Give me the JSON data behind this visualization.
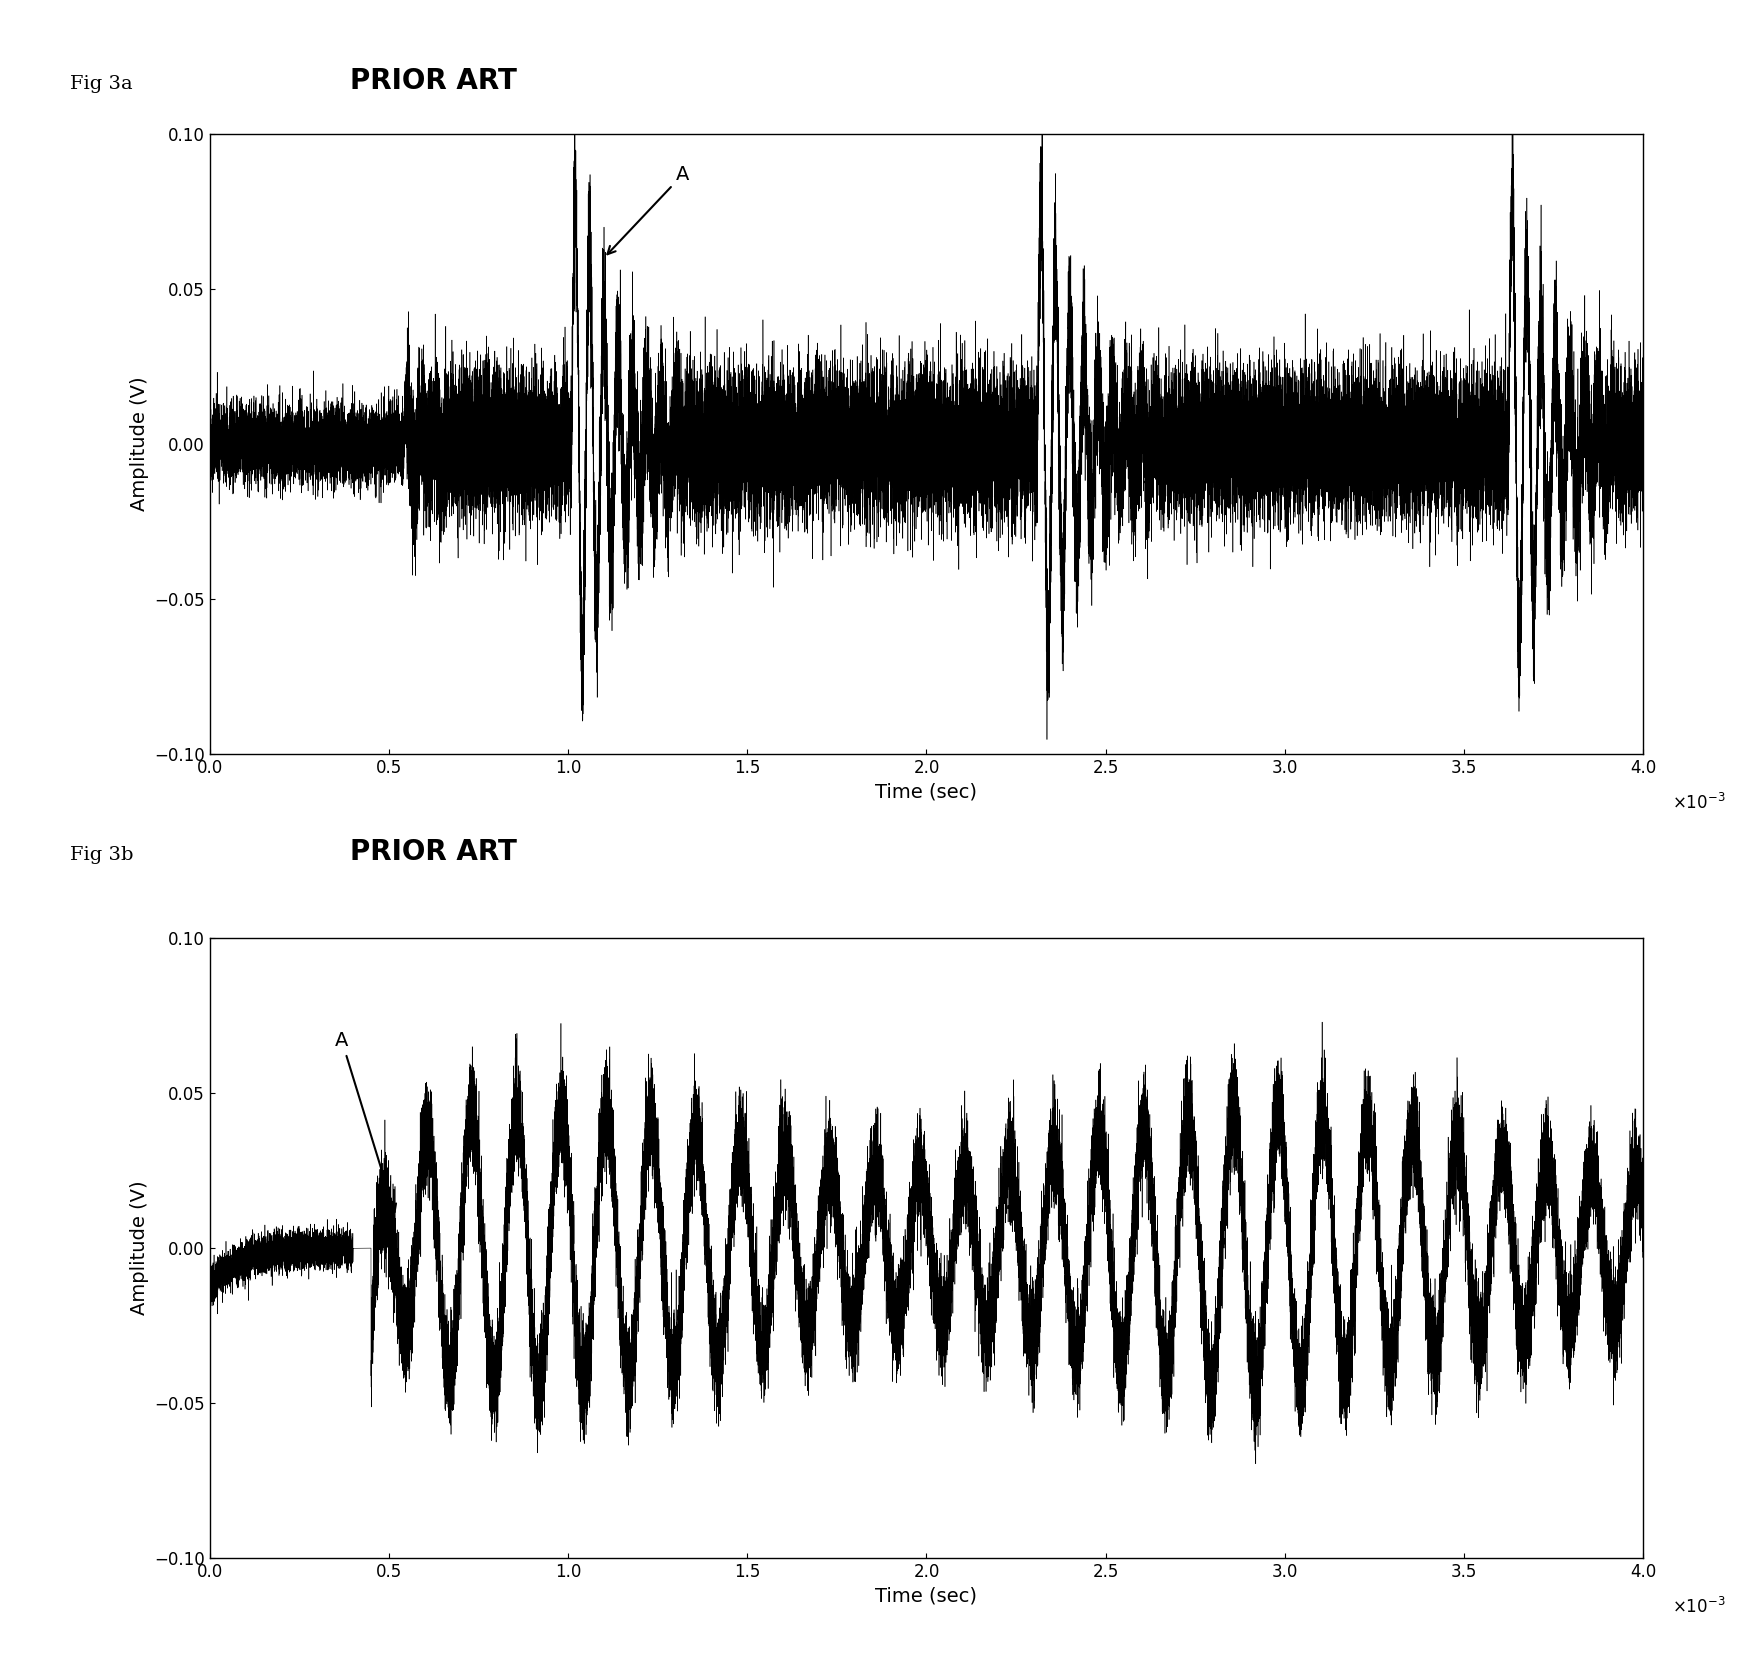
{
  "fig_label_a": "Fig 3a",
  "fig_label_b": "Fig 3b",
  "prior_art_text": "PRIOR ART",
  "xlabel": "Time (sec)",
  "ylabel": "Amplitude (V)",
  "x_scale_label": "x 10⁻³",
  "xlim": [
    0,
    4
  ],
  "ylim": [
    -0.1,
    0.1
  ],
  "yticks": [
    -0.1,
    -0.05,
    0,
    0.05,
    0.1
  ],
  "xticks": [
    0,
    0.5,
    1,
    1.5,
    2,
    2.5,
    3,
    3.5,
    4
  ],
  "annotation_a": "A",
  "background_color": "#ffffff",
  "line_color": "#000000",
  "seed": 42
}
